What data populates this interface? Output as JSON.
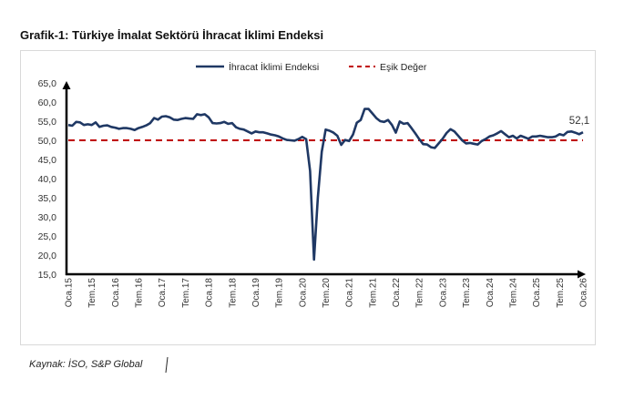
{
  "title": "Grafik-1: Türkiye İmalat Sektörü İhracat İklimi Endeksi",
  "source": "Kaynak: İSO, S&P Global",
  "chart_data": {
    "type": "line",
    "ylim": [
      15,
      65
    ],
    "yticks": [
      "15,0",
      "20,0",
      "25,0",
      "30,0",
      "35,0",
      "40,0",
      "45,0",
      "50,0",
      "55,0",
      "60,0",
      "65,0"
    ],
    "xticks": [
      "Oca.15",
      "Tem.15",
      "Oca.16",
      "Tem.16",
      "Oca.17",
      "Tem.17",
      "Oca.18",
      "Tem.18",
      "Oca.19",
      "Tem.19",
      "Oca.20",
      "Tem.20",
      "Oca.21",
      "Tem.21",
      "Oca.22",
      "Tem.22",
      "Oca.23",
      "Tem.23",
      "Oca.24",
      "Tem.24",
      "Oca.25",
      "Tem.25",
      "Oca.26"
    ],
    "x_start": "2015-01",
    "x_end": "2026-01",
    "x_frequency": "monthly",
    "legend_position": "top",
    "grid": false,
    "series": [
      {
        "name": "İhracat İklimi Endeksi",
        "color": "#1f3864",
        "style": "solid",
        "values": [
          54.0,
          53.8,
          54.8,
          54.7,
          54.0,
          54.2,
          54.0,
          54.7,
          53.5,
          53.8,
          53.9,
          53.5,
          53.3,
          53.0,
          53.2,
          53.2,
          53.0,
          52.7,
          53.2,
          53.5,
          53.9,
          54.5,
          55.8,
          55.4,
          56.2,
          56.3,
          56.0,
          55.4,
          55.3,
          55.6,
          55.8,
          55.7,
          55.6,
          56.8,
          56.6,
          56.8,
          56.0,
          54.5,
          54.4,
          54.5,
          54.8,
          54.3,
          54.5,
          53.4,
          53.0,
          52.8,
          52.3,
          51.8,
          52.3,
          52.1,
          52.1,
          51.8,
          51.5,
          51.3,
          51.0,
          50.5,
          50.1,
          50.0,
          49.9,
          50.3,
          50.9,
          50.3,
          42.0,
          18.8,
          35.0,
          47.0,
          52.8,
          52.5,
          52.0,
          51.2,
          48.8,
          50.1,
          49.8,
          51.5,
          54.6,
          55.3,
          58.2,
          58.2,
          57.0,
          55.8,
          55.0,
          54.8,
          55.3,
          54.0,
          52.0,
          54.9,
          54.3,
          54.5,
          53.2,
          51.8,
          50.3,
          49.0,
          48.9,
          48.2,
          48.0,
          49.2,
          50.4,
          51.9,
          52.9,
          52.3,
          51.2,
          50.0,
          49.2,
          49.3,
          49.1,
          48.9,
          49.8,
          50.3,
          51.0,
          51.3,
          51.8,
          52.4,
          51.6,
          50.8,
          51.2,
          50.5,
          51.2,
          50.8,
          50.4,
          51.0,
          51.0,
          51.2,
          51.0,
          50.8,
          50.8,
          51.0,
          51.6,
          51.3,
          52.2,
          52.3,
          52.0,
          51.6,
          52.1
        ]
      },
      {
        "name": "Eşik Değer",
        "color": "#c00000",
        "style": "dashed",
        "value": 50
      }
    ],
    "annotations": [
      {
        "text": "52,1",
        "x": "2026-01",
        "y": 52.1
      }
    ]
  }
}
